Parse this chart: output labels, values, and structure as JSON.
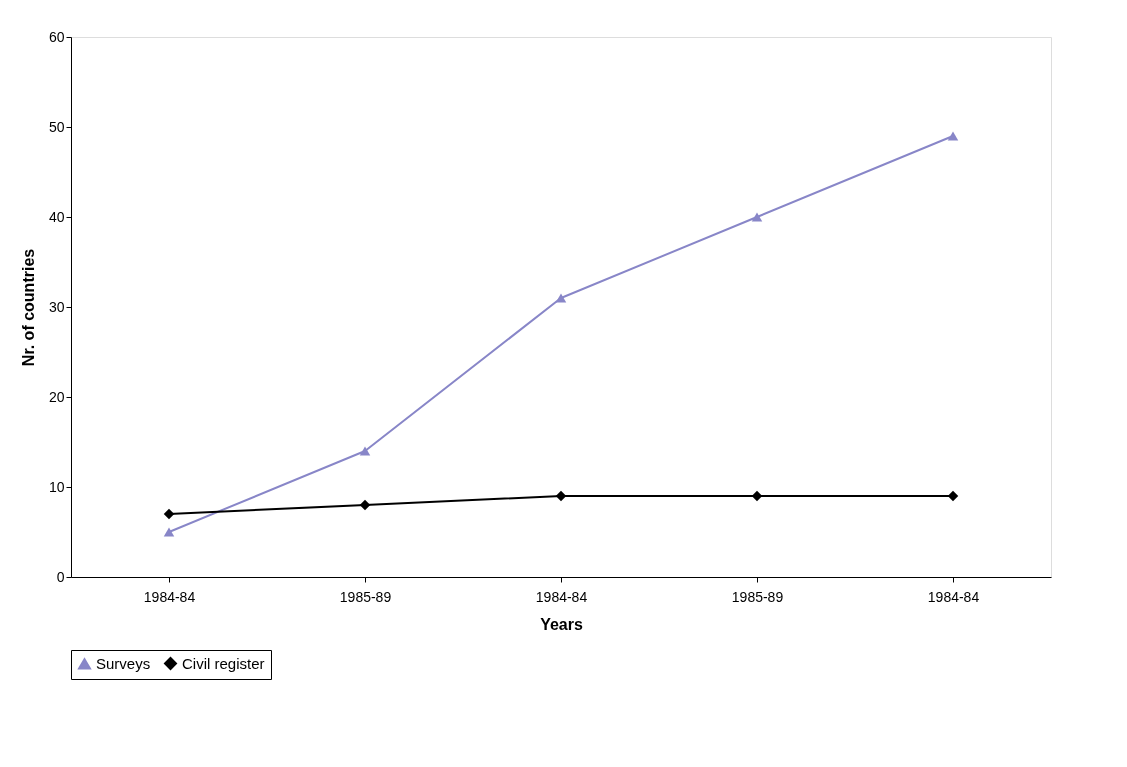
{
  "chart_data": {
    "type": "line",
    "xlabel": "Years",
    "ylabel": "Nr. of countries",
    "categories": [
      "1984-84",
      "1985-89",
      "1984-84",
      "1985-89",
      "1984-84"
    ],
    "series": [
      {
        "name": "Surveys",
        "color": "#8886c8",
        "marker": "triangle",
        "values": [
          5,
          14,
          31,
          40,
          49
        ]
      },
      {
        "name": "Civil register",
        "color": "#000000",
        "marker": "diamond",
        "values": [
          7,
          8,
          9,
          9,
          9
        ]
      }
    ],
    "ylim": [
      0,
      60
    ],
    "yticks": [
      0,
      10,
      20,
      30,
      40,
      50,
      60
    ],
    "grid": false,
    "legend": "bottom",
    "line_style": "solid"
  }
}
